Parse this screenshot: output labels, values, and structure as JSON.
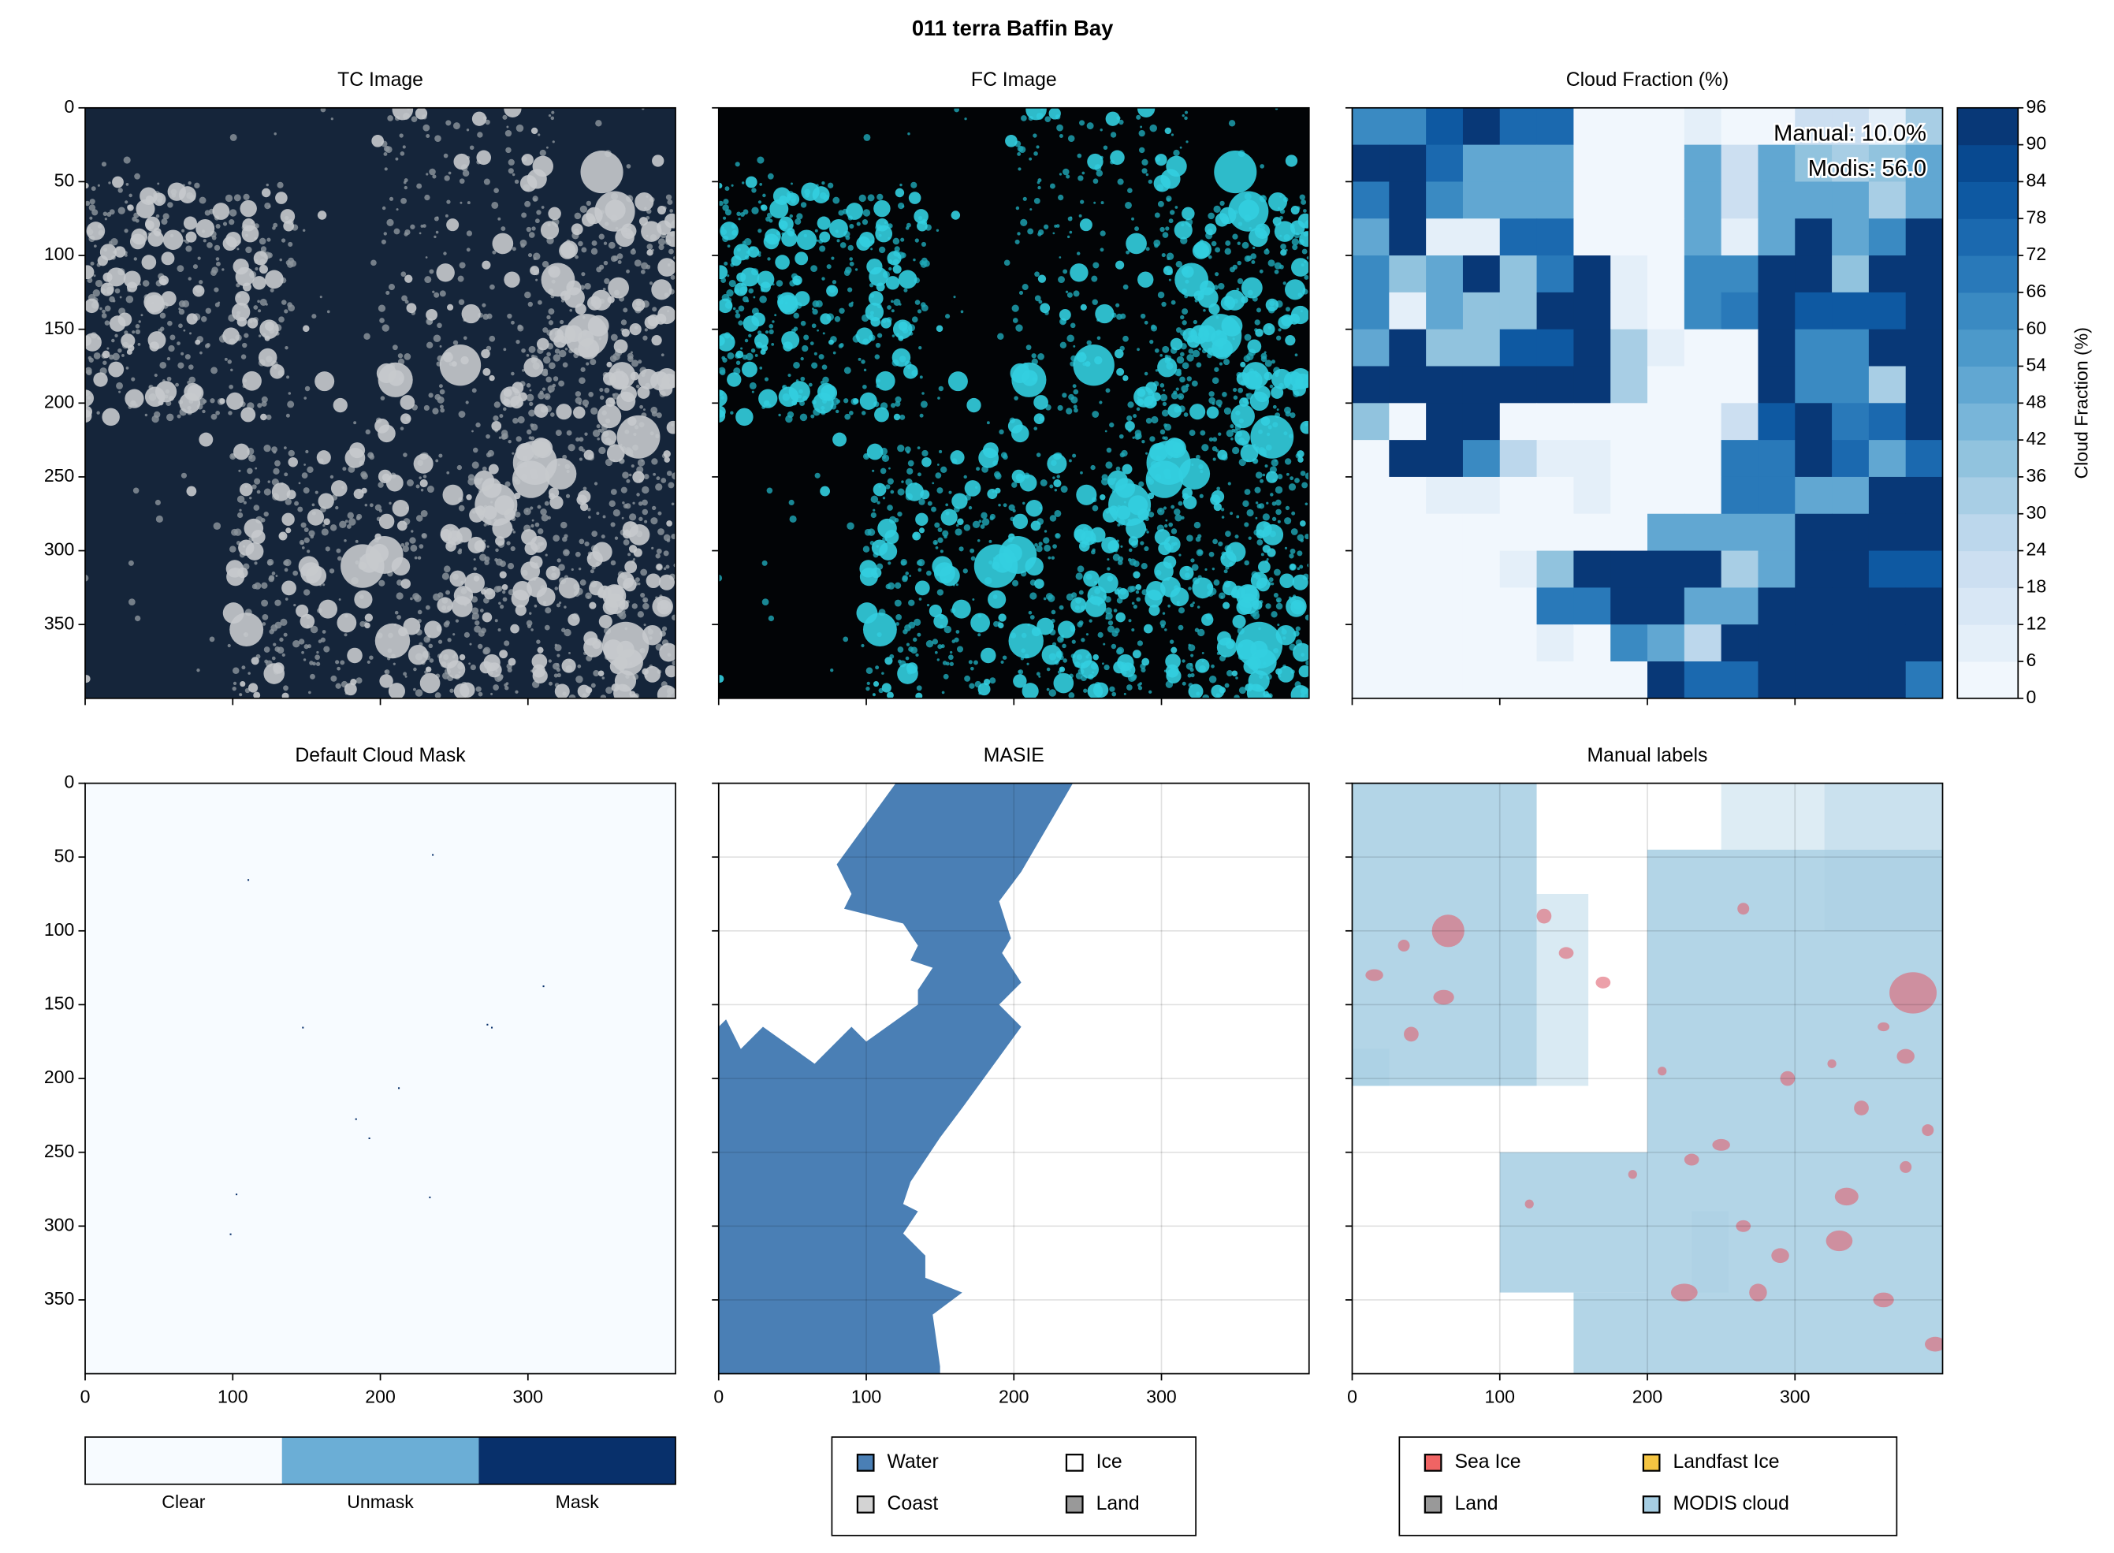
{
  "figure_title": "011 terra Baffin Bay",
  "chart_data": [
    {
      "type": "image",
      "title": "TC Image",
      "variant": "tc",
      "xlim": [
        0,
        400
      ],
      "ylim": [
        0,
        400
      ],
      "y_inverted": true,
      "xticks": [
        0,
        100,
        200,
        300
      ],
      "yticks": [
        0,
        50,
        100,
        150,
        200,
        250,
        300,
        350
      ],
      "xtick_labels": false,
      "ytick_labels": true
    },
    {
      "type": "image",
      "title": "FC Image",
      "variant": "fc",
      "xlim": [
        0,
        400
      ],
      "ylim": [
        0,
        400
      ],
      "y_inverted": true,
      "xticks": [
        0,
        100,
        200,
        300
      ],
      "yticks": [
        0,
        50,
        100,
        150,
        200,
        250,
        300,
        350
      ],
      "xtick_labels": false,
      "ytick_labels": false
    },
    {
      "type": "heatmap",
      "title": "Cloud Fraction (%)",
      "xlim": [
        0,
        400
      ],
      "ylim": [
        0,
        400
      ],
      "y_inverted": true,
      "xticks": [
        0,
        100,
        200,
        300
      ],
      "yticks": [
        0,
        50,
        100,
        150,
        200,
        250,
        300,
        350
      ],
      "xtick_labels": false,
      "ytick_labels": false,
      "values": [
        [
          60,
          60,
          80,
          92,
          72,
          72,
          0,
          0,
          0,
          10,
          0,
          5,
          20,
          20,
          10,
          30
        ],
        [
          92,
          92,
          72,
          48,
          48,
          48,
          0,
          0,
          0,
          48,
          20,
          48,
          40,
          30,
          40,
          48
        ],
        [
          66,
          92,
          60,
          48,
          48,
          48,
          0,
          0,
          0,
          48,
          20,
          48,
          48,
          48,
          30,
          48
        ],
        [
          48,
          92,
          10,
          10,
          72,
          72,
          0,
          0,
          0,
          48,
          10,
          48,
          92,
          48,
          60,
          92
        ],
        [
          60,
          36,
          48,
          92,
          36,
          66,
          92,
          10,
          0,
          60,
          60,
          92,
          92,
          36,
          92,
          92
        ],
        [
          60,
          10,
          48,
          36,
          36,
          92,
          92,
          10,
          0,
          60,
          66,
          92,
          80,
          80,
          80,
          92
        ],
        [
          48,
          92,
          36,
          36,
          80,
          80,
          92,
          30,
          10,
          0,
          0,
          92,
          60,
          60,
          92,
          92
        ],
        [
          92,
          92,
          92,
          92,
          92,
          92,
          92,
          30,
          0,
          0,
          0,
          92,
          60,
          60,
          30,
          92
        ],
        [
          36,
          0,
          92,
          92,
          0,
          0,
          0,
          0,
          0,
          0,
          20,
          80,
          92,
          66,
          72,
          92
        ],
        [
          0,
          92,
          92,
          60,
          24,
          10,
          10,
          0,
          0,
          0,
          66,
          66,
          92,
          72,
          48,
          72
        ],
        [
          0,
          0,
          10,
          10,
          0,
          0,
          10,
          0,
          0,
          0,
          66,
          66,
          48,
          48,
          92,
          92
        ],
        [
          0,
          0,
          0,
          0,
          0,
          0,
          0,
          0,
          48,
          48,
          48,
          48,
          92,
          92,
          92,
          92
        ],
        [
          0,
          0,
          0,
          0,
          10,
          36,
          92,
          92,
          92,
          92,
          30,
          48,
          92,
          92,
          80,
          80
        ],
        [
          0,
          0,
          0,
          0,
          0,
          66,
          66,
          92,
          92,
          48,
          48,
          92,
          92,
          92,
          92,
          92
        ],
        [
          0,
          0,
          0,
          0,
          0,
          10,
          0,
          60,
          48,
          24,
          92,
          92,
          92,
          92,
          92,
          92
        ],
        [
          0,
          0,
          0,
          0,
          0,
          0,
          0,
          3,
          92,
          72,
          72,
          92,
          92,
          92,
          92,
          66
        ]
      ],
      "clim": [
        0,
        96
      ],
      "colormap": [
        "#f7fbff",
        "#deebf7",
        "#c6dbef",
        "#9ecae1",
        "#6baed6",
        "#4292c6",
        "#2171b5",
        "#08519c",
        "#08306b"
      ],
      "colorbar_label": "Cloud Fraction (%)",
      "colorbar_ticks": [
        0,
        6,
        12,
        18,
        24,
        30,
        36,
        42,
        48,
        54,
        60,
        66,
        72,
        78,
        84,
        90,
        96
      ],
      "annotations": [
        "Manual: 10.0%",
        "Modis: 56.0"
      ]
    },
    {
      "type": "mask",
      "title": "Default Cloud Mask",
      "xlim": [
        0,
        400
      ],
      "ylim": [
        0,
        400
      ],
      "y_inverted": true,
      "xticks": [
        0,
        100,
        200,
        300
      ],
      "yticks": [
        0,
        50,
        100,
        150,
        200,
        250,
        300,
        350
      ],
      "xtick_labels": true,
      "ytick_labels": true,
      "legend_categories": [
        "Clear",
        "Unmask",
        "Mask"
      ],
      "legend_colors": [
        "#f7fbff",
        "#6baed6",
        "#08306b"
      ]
    },
    {
      "type": "masie",
      "title": "MASIE",
      "xlim": [
        0,
        400
      ],
      "ylim": [
        0,
        400
      ],
      "y_inverted": true,
      "grid": true,
      "xticks": [
        0,
        100,
        200,
        300
      ],
      "yticks": [
        0,
        50,
        100,
        150,
        200,
        250,
        300,
        350
      ],
      "xtick_labels": true,
      "ytick_labels": false,
      "legend_ncol": 2,
      "legend": [
        {
          "name": "Water",
          "color": "#4a7fb5"
        },
        {
          "name": "Coast",
          "color": "#d3d3d3"
        },
        {
          "name": "Ice",
          "color": "#ffffff"
        },
        {
          "name": "Land",
          "color": "#999999"
        }
      ]
    },
    {
      "type": "labels",
      "title": "Manual labels",
      "xlim": [
        0,
        400
      ],
      "ylim": [
        0,
        400
      ],
      "y_inverted": true,
      "grid": true,
      "xticks": [
        0,
        100,
        200,
        300
      ],
      "yticks": [
        0,
        50,
        100,
        150,
        200,
        250,
        300,
        350
      ],
      "xtick_labels": true,
      "ytick_labels": false,
      "legend_ncol": 2,
      "legend": [
        {
          "name": "Sea Ice",
          "color": "#f06464"
        },
        {
          "name": "Land",
          "color": "#999999"
        },
        {
          "name": "Landfast Ice",
          "color": "#f5c542"
        },
        {
          "name": "MODIS cloud",
          "color": "#a6cee3"
        }
      ]
    }
  ]
}
